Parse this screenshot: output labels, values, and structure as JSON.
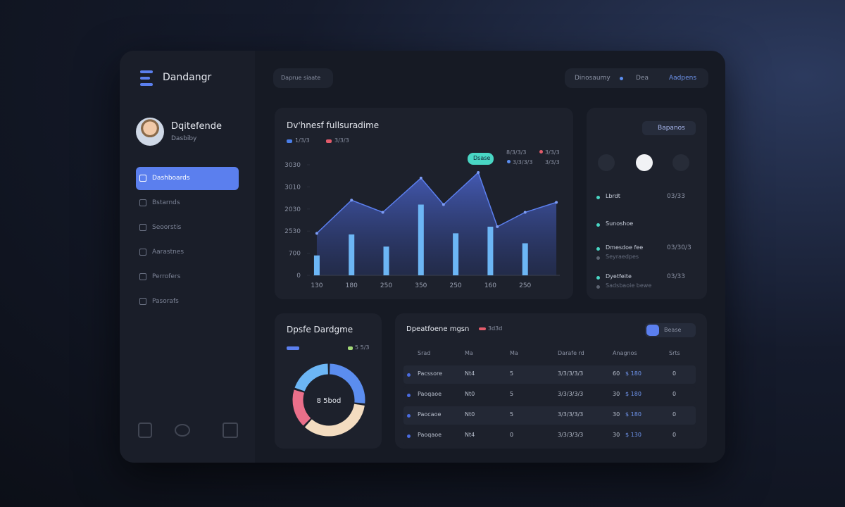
{
  "sidebar": {
    "brand": "Dandangr",
    "user": {
      "name": "Dqitefende",
      "role": "Dasbiby"
    },
    "menu": [
      "Dashboards",
      "Bstarnds",
      "Seoorstis",
      "Aarastnes",
      "Perrofers",
      "Pasorafs"
    ]
  },
  "topbar": {
    "search": "Daprue siaate",
    "actions": [
      "Dinosaumy",
      "Dea",
      "Aadpens"
    ]
  },
  "main_chart": {
    "type": "bar+area",
    "title": "Dv'hnesf fullsuradime",
    "legend": [
      {
        "name": "1/3/3",
        "color": "#4a7ee8"
      },
      {
        "name": "3/3/3",
        "color": "#e25b6a"
      }
    ],
    "tag": "Dsase",
    "notes": [
      "8/3/3/3",
      "3/3/3",
      "3/3/3/3",
      "3/3/3"
    ],
    "categories": [
      "130",
      "180",
      "250",
      "350",
      "250",
      "160",
      "250"
    ],
    "bars": {
      "color": "#6cb6f5",
      "values": [
        0.9,
        1.85,
        1.3,
        3.2,
        1.9,
        2.2,
        1.45
      ]
    },
    "line": {
      "color": "#5b7fee",
      "x": [
        0,
        1,
        1.9,
        3,
        3.65,
        4.65,
        5.2,
        6,
        6.9
      ],
      "values": [
        1.9,
        3.4,
        2.85,
        4.4,
        3.2,
        4.65,
        2.2,
        2.85,
        3.3
      ]
    },
    "xlim": [
      -0.1,
      7
    ],
    "ylim": [
      0,
      5
    ],
    "yticks": [
      {
        "value": 0,
        "label": "0"
      },
      {
        "value": 1,
        "label": "700"
      },
      {
        "value": 2,
        "label": "2530"
      },
      {
        "value": 3,
        "label": "2030"
      },
      {
        "value": 4,
        "label": "3010"
      },
      {
        "value": 5,
        "label": "3030"
      }
    ]
  },
  "side_panel": {
    "button": "Bapanos",
    "items": [
      {
        "label": "Lbrdt",
        "value": "03/33"
      },
      {
        "label": "Sunoshoe"
      },
      {
        "label": "Dmesdoe fee",
        "sub": "Seyraedpes",
        "value": "03/30/3"
      },
      {
        "label": "Dyetfeite",
        "sub": "Sadsbaoie bewe",
        "value": "03/33"
      }
    ]
  },
  "donut": {
    "type": "donut",
    "title": "Dpsfe Dardgme",
    "legend": "5 5/3",
    "center": "8 5bod",
    "values": [
      27,
      35,
      18,
      20
    ],
    "colors": [
      "#5b8def",
      "#f3dcc0",
      "#ea6f8a",
      "#6cb6f5"
    ]
  },
  "table": {
    "title": "Dpeatfoene mgsn",
    "legend": "3d3d",
    "button": "Bease",
    "headers": [
      "Srad",
      "Ma",
      "Ma",
      "Darafe rd",
      "Anagnos",
      "Srts"
    ],
    "rows": [
      [
        "Pacssore",
        "Nt4",
        "5",
        "3/3/3/3/3",
        "60",
        "$ 180",
        "0"
      ],
      [
        "Paoqaoe",
        "Nt0",
        "5",
        "3/3/3/3/3",
        "30",
        "$ 180",
        "0"
      ],
      [
        "Paocaoe",
        "Nt0",
        "5",
        "3/3/3/3/3",
        "30",
        "$ 180",
        "0"
      ],
      [
        "Paoqaoe",
        "Nt4",
        "0",
        "3/3/3/3/3",
        "30",
        "$ 130",
        "0"
      ]
    ]
  }
}
